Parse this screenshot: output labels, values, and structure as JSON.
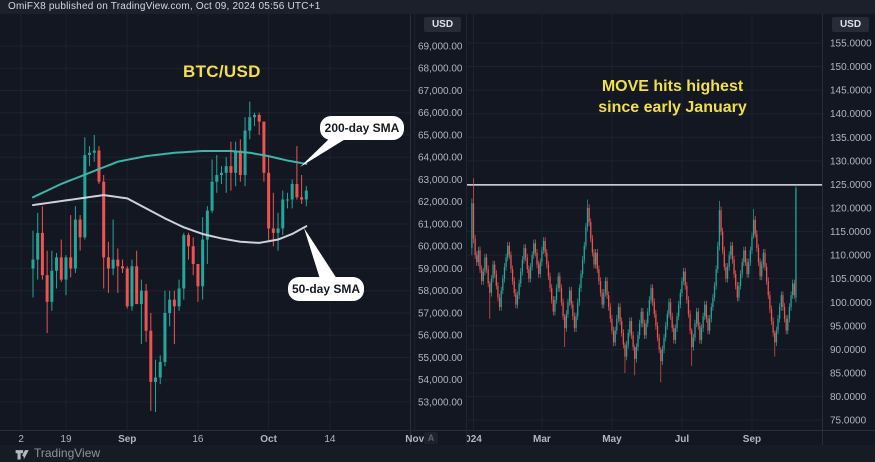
{
  "attribution": "OmiFX8 published on TradingView.com, Oct 09, 2024 05:56 UTC+1",
  "footer": {
    "brand": "TradingView",
    "logo": "tradingview-logo-icon"
  },
  "chart_data": [
    {
      "type": "candlestick",
      "symbol": "BTC/USD",
      "title": "BTC/USD",
      "unit_badge": "USD",
      "auto_badge": "A",
      "legend_note": "daily candles with 200-day and 50-day simple moving averages",
      "ylim": [
        51740,
        70438
      ],
      "xlim": [
        -7,
        80
      ],
      "colors": {
        "up": "#26a69a",
        "down": "#ef5350",
        "sma200": "#3cb5a9",
        "sma50": "#cdd1da"
      },
      "yticks": [
        {
          "v": 69000,
          "label": "69,000.00"
        },
        {
          "v": 68000,
          "label": "68,000.00"
        },
        {
          "v": 67000,
          "label": "67,000.00"
        },
        {
          "v": 66000,
          "label": "66,000.00"
        },
        {
          "v": 65000,
          "label": "65,000.00"
        },
        {
          "v": 64000,
          "label": "64,000.00"
        },
        {
          "v": 63000,
          "label": "63,000.00"
        },
        {
          "v": 62000,
          "label": "62,000.00"
        },
        {
          "v": 61000,
          "label": "61,000.00"
        },
        {
          "v": 60000,
          "label": "60,000.00"
        },
        {
          "v": 59000,
          "label": "59,000.00"
        },
        {
          "v": 58000,
          "label": "58,000.00"
        },
        {
          "v": 57000,
          "label": "57,000.00"
        },
        {
          "v": 56000,
          "label": "56,000.00"
        },
        {
          "v": 55000,
          "label": "55,000.00"
        },
        {
          "v": 54000,
          "label": "54,000.00"
        },
        {
          "v": 53000,
          "label": "53,000.00"
        }
      ],
      "xticks": [
        {
          "i": -2.5,
          "label": "2"
        },
        {
          "i": 7,
          "label": "19"
        },
        {
          "i": 20,
          "label": "Sep",
          "strong": true
        },
        {
          "i": 35,
          "label": "16"
        },
        {
          "i": 50,
          "label": "Oct",
          "strong": true
        },
        {
          "i": 63,
          "label": "14"
        },
        {
          "i": 81,
          "label": "Nov",
          "strong": true
        }
      ],
      "candles": [
        [
          59000,
          60700,
          57700,
          59400
        ],
        [
          59400,
          61500,
          58500,
          60600
        ],
        [
          60600,
          61800,
          58500,
          58700
        ],
        [
          58700,
          59800,
          56100,
          57500
        ],
        [
          57500,
          59800,
          57100,
          58900
        ],
        [
          58900,
          59700,
          58100,
          59500
        ],
        [
          59500,
          60300,
          58400,
          58500
        ],
        [
          58500,
          59600,
          57800,
          59500
        ],
        [
          59500,
          61400,
          58600,
          59000
        ],
        [
          59000,
          61800,
          58800,
          61200
        ],
        [
          61200,
          61400,
          59800,
          60400
        ],
        [
          60400,
          64900,
          60300,
          64100
        ],
        [
          64100,
          64500,
          63600,
          64200
        ],
        [
          64200,
          65000,
          63800,
          64300
        ],
        [
          64300,
          64500,
          62800,
          62900
        ],
        [
          62900,
          63200,
          58100,
          59500
        ],
        [
          59500,
          60200,
          57900,
          59000
        ],
        [
          59000,
          61200,
          58700,
          59400
        ],
        [
          59400,
          59900,
          57900,
          59100
        ],
        [
          59100,
          59400,
          58800,
          59000
        ],
        [
          59000,
          59100,
          57200,
          57300
        ],
        [
          57300,
          59400,
          57100,
          59100
        ],
        [
          59100,
          59800,
          57400,
          57400
        ],
        [
          57400,
          58500,
          55600,
          58000
        ],
        [
          58000,
          58300,
          55700,
          56200
        ],
        [
          56200,
          57000,
          52600,
          53900
        ],
        [
          53900,
          54900,
          52550,
          54100
        ],
        [
          54100,
          55100,
          53800,
          54800
        ],
        [
          54800,
          58000,
          54600,
          57000
        ],
        [
          57000,
          58000,
          56400,
          57600
        ],
        [
          57600,
          58000,
          55600,
          57300
        ],
        [
          57300,
          58500,
          57100,
          58100
        ],
        [
          58100,
          60600,
          57600,
          60500
        ],
        [
          60500,
          60600,
          59400,
          60000
        ],
        [
          60000,
          60400,
          58700,
          59200
        ],
        [
          59200,
          59200,
          57500,
          58200
        ],
        [
          58200,
          61300,
          57600,
          60300
        ],
        [
          60300,
          61800,
          59200,
          61600
        ],
        [
          61600,
          63900,
          61500,
          62900
        ],
        [
          62900,
          64100,
          62400,
          63200
        ],
        [
          63200,
          63600,
          62800,
          63300
        ],
        [
          63300,
          64000,
          62400,
          63600
        ],
        [
          63600,
          64700,
          62500,
          63300
        ],
        [
          63300,
          64700,
          62700,
          64300
        ],
        [
          64300,
          64800,
          62900,
          63200
        ],
        [
          63200,
          65800,
          62700,
          65200
        ],
        [
          65200,
          66500,
          64800,
          65800
        ],
        [
          65800,
          66000,
          65400,
          65900
        ],
        [
          65900,
          66000,
          65000,
          65600
        ],
        [
          65600,
          65600,
          62900,
          63300
        ],
        [
          63300,
          64100,
          60200,
          60800
        ],
        [
          60800,
          62400,
          60000,
          60600
        ],
        [
          60600,
          61500,
          59800,
          60800
        ],
        [
          60800,
          62500,
          60500,
          62100
        ],
        [
          62100,
          62400,
          61700,
          62100
        ],
        [
          62100,
          63000,
          61700,
          62800
        ],
        [
          62800,
          64500,
          62100,
          62200
        ],
        [
          62200,
          63200,
          61900,
          62100
        ],
        [
          62100,
          62700,
          61800,
          62500
        ]
      ],
      "overlays": [
        {
          "name": "sma-200-line",
          "color": "#3cb5a9",
          "points": [
            [
              0,
              62200
            ],
            [
              6,
              62800
            ],
            [
              12,
              63300
            ],
            [
              18,
              63800
            ],
            [
              24,
              64050
            ],
            [
              30,
              64200
            ],
            [
              36,
              64280
            ],
            [
              42,
              64280
            ],
            [
              46,
              64200
            ],
            [
              50,
              64050
            ],
            [
              54,
              63850
            ],
            [
              58,
              63700
            ]
          ]
        },
        {
          "name": "sma-50-line",
          "color": "#cdd1da",
          "points": [
            [
              0,
              61850
            ],
            [
              5,
              62000
            ],
            [
              10,
              62150
            ],
            [
              15,
              62300
            ],
            [
              20,
              62150
            ],
            [
              24,
              61700
            ],
            [
              28,
              61250
            ],
            [
              32,
              60850
            ],
            [
              36,
              60550
            ],
            [
              40,
              60350
            ],
            [
              44,
              60200
            ],
            [
              48,
              60150
            ],
            [
              52,
              60300
            ],
            [
              55,
              60550
            ],
            [
              58,
              60900
            ]
          ]
        }
      ],
      "callouts": [
        {
          "label": "200-day SMA"
        },
        {
          "label": "50-day SMA"
        }
      ]
    },
    {
      "type": "candlestick",
      "symbol": "MOVE",
      "unit_badge": "USD",
      "annotation": {
        "line1": "MOVE hits highest",
        "line2": "since early January"
      },
      "ylim": [
        72.9,
        161.15
      ],
      "xlim": [
        -3,
        215
      ],
      "colors": {
        "up": "#26a69a",
        "down": "#ef5350"
      },
      "hline": {
        "value": 124.9,
        "color": "#dde1e8"
      },
      "default_wick": 0.8,
      "yticks": [
        {
          "v": 155,
          "label": "155.0000"
        },
        {
          "v": 150,
          "label": "150.0000"
        },
        {
          "v": 145,
          "label": "145.0000"
        },
        {
          "v": 140,
          "label": "140.0000"
        },
        {
          "v": 135,
          "label": "135.0000"
        },
        {
          "v": 130,
          "label": "130.0000"
        },
        {
          "v": 125,
          "label": "125.0000"
        },
        {
          "v": 120,
          "label": "120.0000"
        },
        {
          "v": 115,
          "label": "115.0000"
        },
        {
          "v": 110,
          "label": "110.0000"
        },
        {
          "v": 105,
          "label": "105.0000"
        },
        {
          "v": 100,
          "label": "100.0000"
        },
        {
          "v": 95,
          "label": "95.0000"
        },
        {
          "v": 90,
          "label": "90.0000"
        },
        {
          "v": 85,
          "label": "85.0000"
        },
        {
          "v": 80,
          "label": "80.0000"
        },
        {
          "v": 75,
          "label": "75.0000"
        }
      ],
      "xticks": [
        {
          "i": 1,
          "label": "024",
          "strong": true
        },
        {
          "i": 43,
          "label": "Mar",
          "strong": true
        },
        {
          "i": 86,
          "label": "May",
          "strong": true
        },
        {
          "i": 129,
          "label": "Jul",
          "strong": true
        },
        {
          "i": 172,
          "label": "Sep",
          "strong": true
        }
      ],
      "closes": [
        121,
        113.5,
        110,
        108.5,
        111,
        107,
        104.5,
        106.5,
        109.5,
        107,
        104,
        102,
        105,
        108,
        106,
        103.5,
        101,
        99,
        102.5,
        105,
        107.5,
        109.5,
        112,
        110,
        107,
        104.5,
        102,
        99.5,
        101.5,
        104,
        106.5,
        109,
        111.5,
        109.5,
        107,
        105,
        107.5,
        110,
        112.5,
        110.5,
        108,
        106,
        108.5,
        111,
        113,
        110.5,
        108,
        105.5,
        103,
        100.5,
        98,
        100.5,
        103,
        105.5,
        103,
        100,
        97,
        94.5,
        97.5,
        100,
        102.5,
        99.5,
        97,
        94.5,
        97,
        100,
        103,
        106,
        109,
        112,
        116,
        120,
        117,
        113.5,
        110.5,
        108,
        110.5,
        107,
        104.5,
        102,
        99.5,
        102,
        104.5,
        101.5,
        99,
        96.5,
        94,
        91.5,
        94,
        96.5,
        99,
        96,
        93.5,
        91,
        88.5,
        91,
        93.5,
        96,
        93,
        90.5,
        88,
        90.5,
        93,
        95.5,
        98,
        95.5,
        93,
        95.5,
        98,
        100.5,
        103,
        100,
        97.5,
        95,
        92.5,
        90,
        87.5,
        90,
        92.5,
        95,
        97.5,
        100,
        97,
        94.5,
        92,
        94.5,
        97,
        99.5,
        102,
        104.5,
        106.5,
        103.5,
        100.5,
        97.5,
        94,
        90.5,
        92.5,
        95.5,
        98,
        95,
        92,
        94.5,
        97,
        99.5,
        96.5,
        94,
        96.5,
        99,
        101,
        103.5,
        107,
        112,
        119.5,
        115,
        111,
        107.5,
        105,
        107.5,
        110,
        112,
        109,
        106,
        103.5,
        101,
        103.5,
        106,
        108.5,
        111,
        108.5,
        106,
        108.5,
        111,
        114,
        117.5,
        114.5,
        111.5,
        108.5,
        105.5,
        108,
        110.5,
        107.5,
        104.5,
        101.5,
        98.5,
        96,
        93.5,
        91.5,
        94,
        96.5,
        99,
        101.5,
        99,
        96.5,
        94,
        96.5,
        99,
        101.5,
        104,
        101.5,
        124.2
      ],
      "ohlc_overrides": {
        "0": [
          111.5,
          122,
          110,
          121
        ],
        "1": [
          121,
          126.3,
          112.5,
          113.5
        ],
        "11": [
          104,
          104.5,
          96.5,
          102
        ],
        "57": [
          97,
          97.5,
          90.5,
          94.5
        ],
        "71": [
          116,
          121.8,
          115,
          120
        ],
        "94": [
          91,
          91.5,
          85,
          88.5
        ],
        "100": [
          90.5,
          91,
          84.5,
          88
        ],
        "116": [
          90,
          90.5,
          83,
          87.5
        ],
        "135": [
          94,
          94.5,
          86.5,
          90.5
        ],
        "152": [
          112,
          121.5,
          111,
          119.5
        ],
        "173": [
          114,
          119.8,
          113.5,
          117.5
        ],
        "186": [
          93.5,
          94,
          88.5,
          91.5
        ],
        "199": [
          101,
          124.9,
          100,
          124.2
        ]
      }
    }
  ]
}
